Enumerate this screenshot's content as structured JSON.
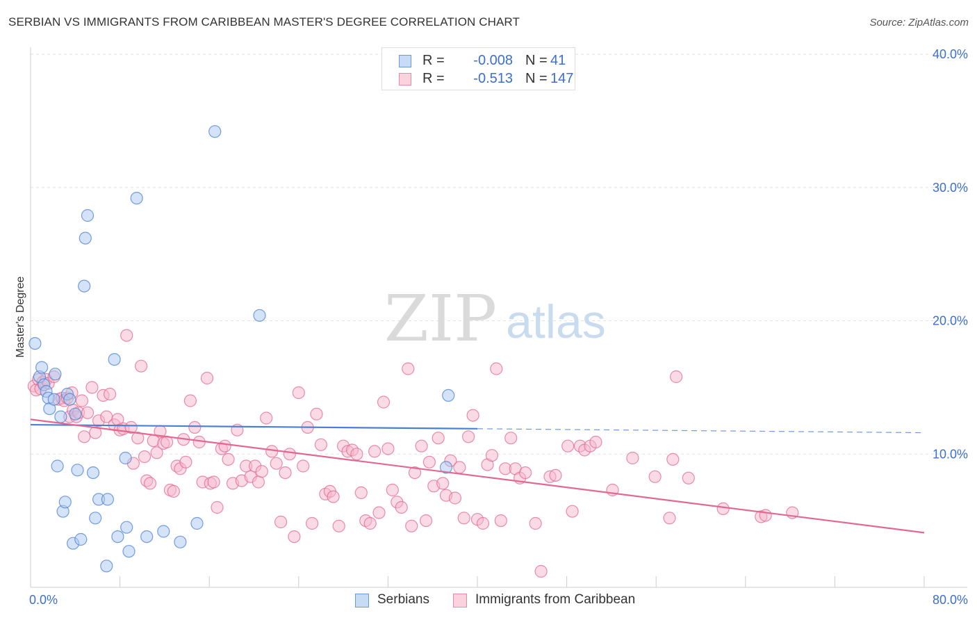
{
  "header": {
    "title": "SERBIAN VS IMMIGRANTS FROM CARIBBEAN MASTER'S DEGREE CORRELATION CHART",
    "source": "Source: ZipAtlas.com"
  },
  "watermark": {
    "zip": "ZIP",
    "atlas": "atlas"
  },
  "legend": {
    "rows": [
      {
        "r_label": "R =",
        "r_value": "-0.008",
        "n_label": "N =",
        "n_value": "41",
        "color": "#a9c8f0"
      },
      {
        "r_label": "R =",
        "r_value": "-0.513",
        "n_label": "N =",
        "n_value": "147",
        "color": "#f5b8cb"
      }
    ]
  },
  "bottom_legend": {
    "serbians": "Serbians",
    "caribbean": "Immigrants from Caribbean"
  },
  "chart_data": {
    "type": "scatter",
    "title": "SERBIAN VS IMMIGRANTS FROM CARIBBEAN MASTER'S DEGREE CORRELATION CHART",
    "xlabel": "",
    "ylabel": "Master's Degree",
    "xlim": [
      0,
      80
    ],
    "ylim": [
      0,
      40
    ],
    "x_tick_labels": [
      {
        "value": 0,
        "label": "0.0%"
      },
      {
        "value": 80,
        "label": "80.0%"
      }
    ],
    "y_tick_labels": [
      {
        "value": 10,
        "label": "10.0%"
      },
      {
        "value": 20,
        "label": "20.0%"
      },
      {
        "value": 30,
        "label": "30.0%"
      },
      {
        "value": 40,
        "label": "40.0%"
      }
    ],
    "series": [
      {
        "name": "Serbians",
        "color": "#4a7fd4",
        "fill": "#a9c8f0",
        "trend": {
          "x0": 0,
          "y0": 12.2,
          "x1": 40,
          "y1": 11.9,
          "dash_to_x": 80,
          "dash_to_y": 11.6
        },
        "points": [
          [
            0.4,
            18.3
          ],
          [
            0.8,
            15.8
          ],
          [
            1.0,
            16.5
          ],
          [
            1.2,
            15.2
          ],
          [
            1.4,
            14.7
          ],
          [
            1.6,
            14.2
          ],
          [
            1.7,
            13.4
          ],
          [
            2.1,
            14.1
          ],
          [
            2.2,
            16.0
          ],
          [
            2.4,
            9.1
          ],
          [
            2.7,
            12.8
          ],
          [
            2.9,
            5.7
          ],
          [
            3.1,
            6.4
          ],
          [
            3.3,
            14.5
          ],
          [
            3.5,
            14.1
          ],
          [
            3.8,
            3.3
          ],
          [
            4.0,
            13.0
          ],
          [
            4.2,
            8.8
          ],
          [
            4.5,
            3.6
          ],
          [
            4.8,
            22.6
          ],
          [
            4.9,
            26.2
          ],
          [
            5.1,
            27.9
          ],
          [
            5.6,
            8.6
          ],
          [
            5.8,
            5.2
          ],
          [
            6.1,
            6.6
          ],
          [
            6.8,
            1.6
          ],
          [
            6.9,
            6.6
          ],
          [
            7.5,
            17.1
          ],
          [
            7.8,
            3.8
          ],
          [
            8.5,
            9.7
          ],
          [
            8.6,
            4.5
          ],
          [
            8.8,
            2.7
          ],
          [
            9.5,
            29.2
          ],
          [
            10.4,
            3.8
          ],
          [
            11.9,
            4.2
          ],
          [
            13.4,
            3.4
          ],
          [
            14.9,
            4.8
          ],
          [
            16.5,
            34.2
          ],
          [
            20.5,
            20.4
          ],
          [
            37.2,
            9.0
          ],
          [
            37.4,
            14.4
          ]
        ]
      },
      {
        "name": "Immigrants from Caribbean",
        "color": "#e2688f",
        "fill": "#f5b8cb",
        "trend": {
          "x0": 0,
          "y0": 12.6,
          "x1": 80,
          "y1": 4.1
        },
        "points": [
          [
            0.3,
            15.1
          ],
          [
            0.5,
            14.8
          ],
          [
            0.7,
            15.6
          ],
          [
            0.9,
            14.9
          ],
          [
            1.1,
            15.4
          ],
          [
            1.4,
            15.6
          ],
          [
            1.6,
            15.3
          ],
          [
            2.1,
            15.8
          ],
          [
            2.5,
            14.1
          ],
          [
            2.8,
            14.2
          ],
          [
            3.0,
            14.0
          ],
          [
            3.3,
            14.2
          ],
          [
            3.5,
            12.8
          ],
          [
            3.7,
            14.6
          ],
          [
            3.8,
            13.3
          ],
          [
            4.1,
            12.8
          ],
          [
            4.3,
            13.1
          ],
          [
            4.6,
            14.0
          ],
          [
            4.8,
            11.3
          ],
          [
            5.1,
            13.1
          ],
          [
            5.5,
            15.0
          ],
          [
            5.8,
            11.6
          ],
          [
            6.1,
            12.5
          ],
          [
            6.5,
            14.4
          ],
          [
            6.8,
            12.8
          ],
          [
            7.1,
            14.5
          ],
          [
            7.5,
            12.2
          ],
          [
            7.8,
            12.6
          ],
          [
            8.0,
            11.8
          ],
          [
            8.3,
            11.9
          ],
          [
            8.6,
            18.9
          ],
          [
            9.0,
            12.0
          ],
          [
            9.2,
            9.3
          ],
          [
            9.6,
            11.2
          ],
          [
            9.9,
            16.6
          ],
          [
            10.2,
            9.8
          ],
          [
            10.4,
            8.0
          ],
          [
            10.7,
            7.8
          ],
          [
            11.0,
            11.0
          ],
          [
            11.3,
            10.1
          ],
          [
            11.6,
            11.7
          ],
          [
            11.9,
            10.8
          ],
          [
            12.2,
            10.9
          ],
          [
            12.5,
            7.3
          ],
          [
            12.8,
            7.2
          ],
          [
            13.1,
            9.1
          ],
          [
            13.4,
            8.9
          ],
          [
            13.7,
            11.1
          ],
          [
            13.9,
            9.4
          ],
          [
            14.3,
            14.0
          ],
          [
            14.7,
            12.0
          ],
          [
            15.1,
            10.9
          ],
          [
            15.4,
            7.9
          ],
          [
            15.8,
            15.7
          ],
          [
            16.1,
            7.8
          ],
          [
            16.4,
            7.9
          ],
          [
            16.7,
            6.0
          ],
          [
            17.1,
            10.4
          ],
          [
            17.4,
            10.6
          ],
          [
            17.7,
            9.6
          ],
          [
            18.1,
            7.8
          ],
          [
            18.5,
            11.8
          ],
          [
            18.9,
            8.0
          ],
          [
            19.3,
            9.1
          ],
          [
            19.7,
            8.3
          ],
          [
            20.1,
            9.1
          ],
          [
            20.4,
            7.9
          ],
          [
            20.7,
            8.7
          ],
          [
            21.1,
            12.7
          ],
          [
            21.6,
            10.2
          ],
          [
            22.0,
            9.3
          ],
          [
            22.4,
            4.9
          ],
          [
            22.8,
            8.6
          ],
          [
            23.2,
            10.0
          ],
          [
            23.6,
            3.8
          ],
          [
            24.0,
            14.6
          ],
          [
            24.4,
            9.1
          ],
          [
            24.8,
            12.0
          ],
          [
            25.2,
            4.8
          ],
          [
            25.6,
            13.0
          ],
          [
            26.0,
            10.7
          ],
          [
            26.4,
            7.0
          ],
          [
            26.8,
            7.2
          ],
          [
            27.1,
            6.8
          ],
          [
            27.6,
            4.6
          ],
          [
            28.0,
            10.6
          ],
          [
            28.4,
            10.2
          ],
          [
            28.8,
            10.3
          ],
          [
            29.2,
            10.0
          ],
          [
            29.6,
            7.1
          ],
          [
            30.0,
            5.0
          ],
          [
            30.4,
            4.8
          ],
          [
            30.8,
            10.2
          ],
          [
            31.2,
            5.6
          ],
          [
            31.6,
            13.9
          ],
          [
            32.0,
            10.4
          ],
          [
            32.4,
            7.3
          ],
          [
            32.8,
            6.4
          ],
          [
            33.2,
            6.0
          ],
          [
            33.8,
            16.4
          ],
          [
            34.1,
            4.6
          ],
          [
            34.4,
            8.6
          ],
          [
            35.0,
            10.6
          ],
          [
            35.4,
            5.0
          ],
          [
            35.7,
            9.4
          ],
          [
            36.1,
            7.6
          ],
          [
            36.5,
            11.2
          ],
          [
            36.9,
            7.8
          ],
          [
            37.2,
            6.9
          ],
          [
            37.6,
            9.5
          ],
          [
            38.0,
            6.7
          ],
          [
            38.4,
            9.0
          ],
          [
            38.8,
            5.2
          ],
          [
            39.2,
            11.3
          ],
          [
            39.6,
            12.9
          ],
          [
            40.0,
            5.1
          ],
          [
            40.5,
            4.8
          ],
          [
            40.9,
            9.2
          ],
          [
            41.3,
            9.9
          ],
          [
            41.7,
            16.4
          ],
          [
            42.1,
            5.0
          ],
          [
            42.5,
            8.9
          ],
          [
            43.0,
            11.2
          ],
          [
            43.4,
            8.9
          ],
          [
            43.8,
            8.2
          ],
          [
            44.3,
            8.6
          ],
          [
            45.2,
            4.8
          ],
          [
            45.7,
            1.2
          ],
          [
            46.5,
            8.3
          ],
          [
            47.0,
            8.4
          ],
          [
            48.1,
            10.6
          ],
          [
            48.5,
            5.7
          ],
          [
            49.2,
            10.6
          ],
          [
            49.6,
            10.3
          ],
          [
            50.1,
            10.6
          ],
          [
            50.6,
            10.9
          ],
          [
            52.1,
            7.3
          ],
          [
            53.9,
            9.7
          ],
          [
            55.9,
            8.3
          ],
          [
            57.2,
            5.2
          ],
          [
            57.5,
            9.6
          ],
          [
            57.8,
            15.8
          ],
          [
            58.9,
            8.2
          ],
          [
            62.0,
            5.9
          ],
          [
            65.4,
            5.3
          ],
          [
            65.8,
            5.4
          ],
          [
            68.2,
            5.6
          ]
        ]
      }
    ]
  }
}
